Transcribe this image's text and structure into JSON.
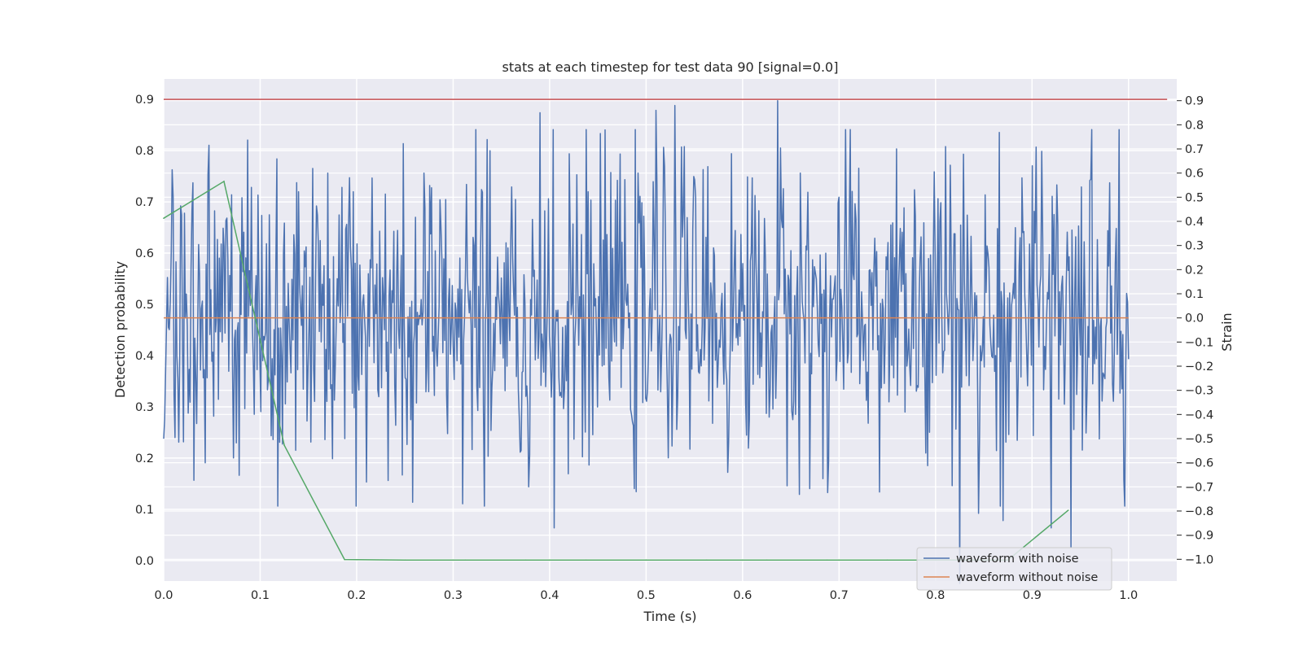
{
  "chart_data": {
    "type": "line",
    "title": "stats at each timestep for test data 90 [signal=0.0]",
    "xlabel": "Time (s)",
    "ylabel_left": "Detection probability",
    "ylabel_right": "Strain",
    "xlim": [
      0.0,
      1.05
    ],
    "ylim_left": [
      -0.04,
      0.94
    ],
    "ylim_right": [
      -1.09,
      0.99
    ],
    "x_ticks": [
      "0.0",
      "0.1",
      "0.2",
      "0.3",
      "0.4",
      "0.5",
      "0.6",
      "0.7",
      "0.8",
      "0.9",
      "1.0"
    ],
    "y_ticks_left": [
      "0.0",
      "0.1",
      "0.2",
      "0.3",
      "0.4",
      "0.5",
      "0.6",
      "0.7",
      "0.8",
      "0.9"
    ],
    "y_ticks_right": [
      "−1.0",
      "−0.9",
      "−0.8",
      "−0.7",
      "−0.6",
      "−0.5",
      "−0.4",
      "−0.3",
      "−0.2",
      "−0.1",
      "0.0",
      "0.1",
      "0.2",
      "0.3",
      "0.4",
      "0.5",
      "0.6",
      "0.7",
      "0.8",
      "0.9"
    ],
    "grid": true,
    "legend_position": "lower-right",
    "series": [
      {
        "name": "waveform with noise",
        "axis": "right",
        "color": "#4c72b0",
        "x_range": [
          0.0,
          1.0
        ],
        "points": 1024,
        "std": 0.3,
        "peaks": [
          [
            0.03,
            0.56
          ],
          [
            0.07,
            0.51
          ],
          [
            0.17,
            0.6
          ],
          [
            0.21,
            -0.68
          ],
          [
            0.27,
            0.6
          ],
          [
            0.31,
            -0.77
          ],
          [
            0.33,
            0.52
          ],
          [
            0.39,
            0.85
          ],
          [
            0.405,
            -0.87
          ],
          [
            0.42,
            0.68
          ],
          [
            0.47,
            0.57
          ],
          [
            0.49,
            -0.72
          ],
          [
            0.51,
            0.86
          ],
          [
            0.53,
            0.88
          ],
          [
            0.54,
            0.71
          ],
          [
            0.585,
            -0.64
          ],
          [
            0.61,
            0.58
          ],
          [
            0.636,
            0.9
          ],
          [
            0.66,
            0.6
          ],
          [
            0.7,
            0.5
          ],
          [
            0.72,
            0.62
          ],
          [
            0.76,
            0.7
          ],
          [
            0.79,
            -0.56
          ],
          [
            0.81,
            0.71
          ],
          [
            0.825,
            -1.1
          ],
          [
            0.845,
            -0.81
          ],
          [
            0.87,
            -0.84
          ],
          [
            0.89,
            0.58
          ],
          [
            0.9,
            0.63
          ],
          [
            0.91,
            0.69
          ],
          [
            0.92,
            -0.87
          ],
          [
            0.94,
            -0.95
          ],
          [
            0.96,
            0.57
          ],
          [
            0.98,
            0.56
          ],
          [
            0.99,
            0.78
          ]
        ]
      },
      {
        "name": "waveform without noise",
        "axis": "right",
        "color": "#dd8452",
        "x": [
          0.0,
          1.0
        ],
        "y": [
          0.0,
          0.0
        ]
      },
      {
        "axis": "left",
        "color": "#55a868",
        "x": [
          0.0,
          0.0625,
          0.125,
          0.1875,
          0.25,
          0.3125,
          0.375,
          0.4375,
          0.5,
          0.5625,
          0.625,
          0.6875,
          0.75,
          0.8125,
          0.875,
          0.9375
        ],
        "y": [
          0.668,
          0.74,
          0.225,
          0.002,
          0.001,
          0.001,
          0.001,
          0.001,
          0.001,
          0.001,
          0.001,
          0.001,
          0.001,
          0.001,
          0.001,
          0.098
        ]
      },
      {
        "axis": "left",
        "color": "#c44e52",
        "x": [
          0.0,
          1.04
        ],
        "y": [
          0.9,
          0.9
        ]
      }
    ]
  }
}
